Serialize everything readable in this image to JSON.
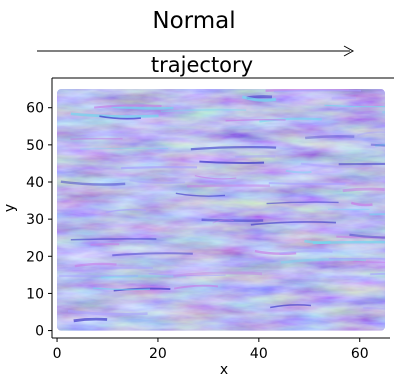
{
  "header": {
    "title": "Normal",
    "subtitle": "trajectory"
  },
  "chart_data": {
    "type": "heatmap",
    "title": "trajectory",
    "xlabel": "x",
    "ylabel": "y",
    "xlim": [
      -1,
      66
    ],
    "ylim": [
      -2,
      68
    ],
    "x_ticks": [
      0,
      20,
      40,
      60
    ],
    "y_ticks": [
      0,
      10,
      20,
      30,
      40,
      50,
      60
    ],
    "image_extent": {
      "x": [
        0,
        65
      ],
      "y": [
        0,
        65
      ]
    },
    "image_description": "normal-map texture",
    "grid": false,
    "colors": {
      "base": "#7f70f0",
      "light": "#a8a0ff",
      "dark": "#3b36c8",
      "cyan": "#70d8f0",
      "pink": "#c77de8",
      "magenta": "#e090e0"
    }
  }
}
